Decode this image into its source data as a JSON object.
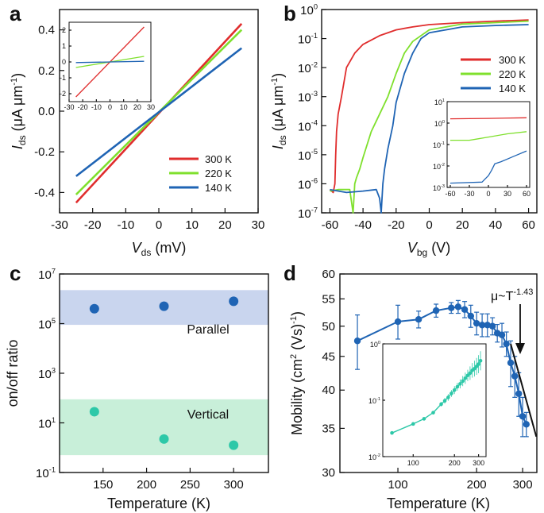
{
  "figure": {
    "panel_labels": [
      "a",
      "b",
      "c",
      "d"
    ]
  },
  "chart_data": [
    {
      "panel": "a",
      "type": "line",
      "xlabel": "V_ds (mV)",
      "ylabel": "I_ds (μA μm⁻¹)",
      "xlim": [
        -30,
        30
      ],
      "ylim": [
        -0.5,
        0.5
      ],
      "xticks": [
        "-30",
        "-20",
        "-10",
        "0",
        "10",
        "20",
        "30"
      ],
      "yticks": [
        "-0.4",
        "-0.2",
        "0.0",
        "0.2",
        "0.4"
      ],
      "legend_position": "lower-right",
      "series": [
        {
          "name": "300 K",
          "color": "#e02d2d",
          "x": [
            -25,
            25
          ],
          "y": [
            -0.45,
            0.43
          ]
        },
        {
          "name": "220 K",
          "color": "#7fe02d",
          "x": [
            -25,
            25
          ],
          "y": [
            -0.41,
            0.4
          ]
        },
        {
          "name": "140 K",
          "color": "#1f64b4",
          "x": [
            -25,
            25
          ],
          "y": [
            -0.32,
            0.31
          ]
        }
      ],
      "inset": {
        "xlim": [
          -30,
          30
        ],
        "ylim": [
          -2.5,
          2.5
        ],
        "xticks": [
          "-30",
          "-20",
          "-10",
          "0",
          "10",
          "20",
          "30"
        ],
        "yticks": [
          "-2",
          "-1",
          "0",
          "1",
          "2"
        ],
        "series": [
          {
            "name": "300 K",
            "color": "#e02d2d",
            "x": [
              -25,
              25
            ],
            "y": [
              -2.2,
              2.2
            ]
          },
          {
            "name": "220 K",
            "color": "#7fe02d",
            "x": [
              -25,
              25
            ],
            "y": [
              -0.35,
              0.35
            ]
          },
          {
            "name": "140 K",
            "color": "#1f64b4",
            "x": [
              -25,
              25
            ],
            "y": [
              -0.04,
              0.04
            ]
          }
        ]
      }
    },
    {
      "panel": "b",
      "type": "line",
      "yscale": "log",
      "xlabel": "V_bg (V)",
      "ylabel": "I_ds (μA μm⁻¹)",
      "xlim": [
        -65,
        65
      ],
      "ylim_log10": [
        -7,
        0
      ],
      "xticks": [
        "-60",
        "-40",
        "-20",
        "0",
        "20",
        "40",
        "60"
      ],
      "yticks": [
        "10-7",
        "10-6",
        "10-5",
        "10-4",
        "10-3",
        "10-2",
        "10-1",
        "100"
      ],
      "legend_position": "upper-right",
      "series": [
        {
          "name": "300 K",
          "color": "#e02d2d",
          "x": [
            -60,
            -58,
            -57,
            -56.5,
            -56,
            -55,
            -53,
            -50,
            -45,
            -40,
            -30,
            -20,
            -10,
            0,
            20,
            40,
            60
          ],
          "log10y": [
            -6.2,
            -6.3,
            -6.0,
            -5.0,
            -4.2,
            -3.6,
            -3.0,
            -2.0,
            -1.5,
            -1.2,
            -0.9,
            -0.7,
            -0.6,
            -0.52,
            -0.45,
            -0.4,
            -0.36
          ]
        },
        {
          "name": "220 K",
          "color": "#7fe02d",
          "x": [
            -60,
            -55,
            -50,
            -48,
            -46,
            -45,
            -44,
            -42,
            -40,
            -35,
            -30,
            -25,
            -20,
            -15,
            -10,
            0,
            20,
            40,
            60
          ],
          "log10y": [
            -6.25,
            -6.2,
            -6.2,
            -6.2,
            -7.0,
            -6.0,
            -5.8,
            -5.5,
            -5.1,
            -4.2,
            -3.6,
            -3.0,
            -2.2,
            -1.5,
            -1.1,
            -0.7,
            -0.5,
            -0.45,
            -0.4
          ]
        },
        {
          "name": "140 K",
          "color": "#1f64b4",
          "x": [
            -60,
            -50,
            -40,
            -32,
            -30,
            -29,
            -28,
            -27,
            -25,
            -22,
            -20,
            -15,
            -10,
            -5,
            0,
            10,
            20,
            40,
            60
          ],
          "log10y": [
            -6.2,
            -6.3,
            -6.25,
            -6.2,
            -6.5,
            -7.0,
            -6.0,
            -5.5,
            -4.8,
            -4.0,
            -3.2,
            -2.2,
            -1.5,
            -1.0,
            -0.8,
            -0.7,
            -0.6,
            -0.55,
            -0.52
          ]
        }
      ],
      "inset": {
        "yscale": "log",
        "xlim": [
          -65,
          65
        ],
        "ylim_log10": [
          -3,
          1
        ],
        "xticks": [
          "-60",
          "-30",
          "0",
          "30",
          "60"
        ],
        "yticks": [
          "10-3",
          "10-2",
          "10-1",
          "100",
          "101"
        ],
        "series": [
          {
            "name": "300 K",
            "color": "#e02d2d",
            "x": [
              -60,
              0,
              60
            ],
            "log10y": [
              0.2,
              0.22,
              0.25
            ]
          },
          {
            "name": "220 K",
            "color": "#7fe02d",
            "x": [
              -60,
              -30,
              -20,
              0,
              30,
              60
            ],
            "log10y": [
              -0.8,
              -0.8,
              -0.75,
              -0.65,
              -0.5,
              -0.4
            ]
          },
          {
            "name": "140 K",
            "color": "#1f64b4",
            "x": [
              -60,
              -10,
              -5,
              0,
              5,
              10,
              20,
              40,
              60
            ],
            "log10y": [
              -2.8,
              -2.75,
              -2.6,
              -2.45,
              -2.2,
              -1.9,
              -1.8,
              -1.55,
              -1.3
            ]
          }
        ]
      }
    },
    {
      "panel": "c",
      "type": "scatter",
      "yscale": "log",
      "xlabel": "Temperature (K)",
      "ylabel": "on/off ratio",
      "xlim": [
        100,
        340
      ],
      "ylim_log10": [
        -1,
        7
      ],
      "xticks": [
        "150",
        "200",
        "250",
        "300"
      ],
      "yticks": [
        "10-1",
        "101",
        "103",
        "105",
        "107"
      ],
      "bands": [
        {
          "label": "Parallel",
          "from_log10": 4.95,
          "to_log10": 6.35,
          "color": "#c9d5ee"
        },
        {
          "label": "Vertical",
          "from_log10": -0.3,
          "to_log10": 1.95,
          "color": "#c8efd9"
        }
      ],
      "series": [
        {
          "name": "Parallel",
          "color": "#1f64b4",
          "x": [
            140,
            220,
            300
          ],
          "log10y": [
            5.6,
            5.7,
            5.9
          ]
        },
        {
          "name": "Vertical",
          "color": "#2dc8a8",
          "x": [
            140,
            220,
            300
          ],
          "log10y": [
            1.45,
            0.35,
            0.1
          ]
        }
      ]
    },
    {
      "panel": "d",
      "type": "line",
      "xscale": "log",
      "yscale": "log",
      "xlabel": "Temperature (K)",
      "ylabel": "Mobility (cm2 (Vs)-1)",
      "xlim": [
        60,
        340
      ],
      "ylim": [
        30,
        60
      ],
      "xticks": [
        "100",
        "200",
        "300"
      ],
      "yticks": [
        "30",
        "35",
        "40",
        "45",
        "50",
        "55",
        "60"
      ],
      "annotation": "μ~T-1.43",
      "fit_line": {
        "x": [
          270,
          320
        ],
        "y": [
          47,
          34
        ]
      },
      "series": [
        {
          "name": "Mobility",
          "color": "#1f64b4",
          "x": [
            70,
            100,
            120,
            140,
            160,
            170,
            180,
            190,
            200,
            210,
            220,
            230,
            240,
            250,
            260,
            270,
            280,
            290,
            300,
            310
          ],
          "y": [
            47.5,
            50.8,
            51.2,
            52.8,
            53.3,
            53.5,
            53.0,
            51.8,
            50.5,
            50.2,
            50.2,
            50.0,
            48.8,
            48.5,
            47.0,
            44.0,
            42.0,
            39.5,
            36.5,
            35.5
          ],
          "err": [
            4.5,
            3.0,
            1.5,
            1.2,
            1.0,
            1.2,
            1.5,
            2.0,
            2.0,
            2.0,
            2.0,
            1.5,
            1.5,
            2.0,
            2.0,
            3.5,
            3.0,
            3.0,
            2.5,
            1.5
          ]
        }
      ],
      "inset": {
        "xscale": "log",
        "yscale": "log",
        "xlim": [
          60,
          340
        ],
        "ylim_log10": [
          -2,
          0
        ],
        "xticks": [
          "100",
          "200",
          "300"
        ],
        "yticks": [
          "10-2",
          "10-1",
          "100"
        ],
        "series": [
          {
            "name": "inset",
            "color": "#2dc8a8",
            "x": [
              70,
              100,
              120,
              140,
              160,
              170,
              180,
              190,
              200,
              210,
              220,
              230,
              240,
              250,
              260,
              270,
              280,
              290,
              300,
              310
            ],
            "log10y": [
              -1.58,
              -1.42,
              -1.33,
              -1.22,
              -1.07,
              -1.01,
              -0.95,
              -0.88,
              -0.82,
              -0.76,
              -0.71,
              -0.66,
              -0.61,
              -0.56,
              -0.52,
              -0.47,
              -0.44,
              -0.4,
              -0.36,
              -0.3
            ],
            "log10err": [
              0.03,
              0.03,
              0.03,
              0.03,
              0.04,
              0.05,
              0.06,
              0.06,
              0.07,
              0.07,
              0.08,
              0.09,
              0.1,
              0.1,
              0.12,
              0.13,
              0.14,
              0.15,
              0.16,
              0.17
            ]
          }
        ]
      }
    }
  ]
}
